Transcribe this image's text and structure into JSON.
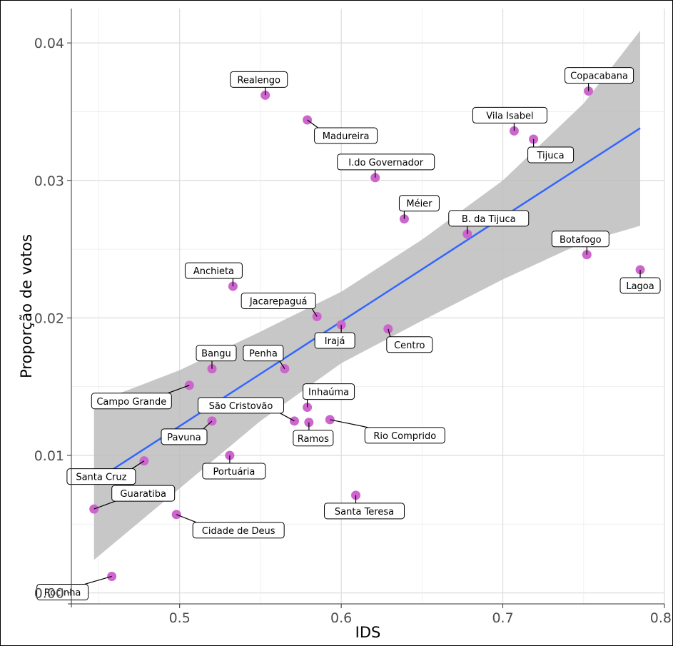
{
  "chart_data": {
    "type": "scatter",
    "title": "",
    "xlabel": "IDS",
    "ylabel": "Proporção de votos",
    "xlim": [
      0.433,
      0.8
    ],
    "ylim": [
      -0.0008,
      0.0425
    ],
    "x_ticks": [
      0.5,
      0.6,
      0.7,
      0.8
    ],
    "x_tick_labels": [
      "0.5",
      "0.6",
      "0.7",
      "0.8"
    ],
    "y_ticks": [
      0.0,
      0.01,
      0.02,
      0.03,
      0.04
    ],
    "y_tick_labels": [
      "0.00",
      "0.01",
      "0.02",
      "0.03",
      "0.04"
    ],
    "grid": true,
    "point_color": "#cc66cc",
    "line_color": "#3366ff",
    "band_color": "#bdbdbd",
    "points": [
      {
        "label": "Rocinha",
        "x": 0.458,
        "y": 0.0012,
        "lx": -2.3,
        "ly": -1
      },
      {
        "label": "Guaratiba",
        "x": 0.447,
        "y": 0.0061,
        "lx": 2.3,
        "ly": 0.5
      },
      {
        "label": "Santa Cruz",
        "x": 0.478,
        "y": 0.0096,
        "lx": -2.0,
        "ly": -1
      },
      {
        "label": "Cidade de Deus",
        "x": 0.498,
        "y": 0.0057,
        "lx": 2.9,
        "ly": -1
      },
      {
        "label": "Campo Grande",
        "x": 0.506,
        "y": 0.0151,
        "lx": -2.7,
        "ly": -1
      },
      {
        "label": "Pavuna",
        "x": 0.52,
        "y": 0.0125,
        "lx": -1.3,
        "ly": -1
      },
      {
        "label": "Bangu",
        "x": 0.52,
        "y": 0.0163,
        "lx": 0.2,
        "ly": 1
      },
      {
        "label": "Portuária",
        "x": 0.531,
        "y": 0.01,
        "lx": 0.2,
        "ly": -1
      },
      {
        "label": "Anchieta",
        "x": 0.533,
        "y": 0.0223,
        "lx": -0.9,
        "ly": 1
      },
      {
        "label": "Realengo",
        "x": 0.553,
        "y": 0.0362,
        "lx": -0.3,
        "ly": 1
      },
      {
        "label": "Penha",
        "x": 0.565,
        "y": 0.0163,
        "lx": -1.0,
        "ly": 1
      },
      {
        "label": "São Cristovão",
        "x": 0.571,
        "y": 0.0125,
        "lx": -2.5,
        "ly": 1
      },
      {
        "label": "Ramos",
        "x": 0.58,
        "y": 0.0124,
        "lx": 0.2,
        "ly": -1
      },
      {
        "label": "Inhaúma",
        "x": 0.579,
        "y": 0.0135,
        "lx": 1.0,
        "ly": 1
      },
      {
        "label": "Madureira",
        "x": 0.579,
        "y": 0.0344,
        "lx": 1.8,
        "ly": -1
      },
      {
        "label": "Jacarepaguá",
        "x": 0.585,
        "y": 0.0201,
        "lx": -1.8,
        "ly": 1
      },
      {
        "label": "Rio Comprido",
        "x": 0.593,
        "y": 0.0126,
        "lx": 3.5,
        "ly": -1
      },
      {
        "label": "Irajá",
        "x": 0.6,
        "y": 0.0195,
        "lx": -0.3,
        "ly": -1
      },
      {
        "label": "Santa Teresa",
        "x": 0.609,
        "y": 0.0071,
        "lx": 0.4,
        "ly": -1
      },
      {
        "label": "I.do Governador",
        "x": 0.621,
        "y": 0.0302,
        "lx": 0.5,
        "ly": 1
      },
      {
        "label": "Centro",
        "x": 0.629,
        "y": 0.0192,
        "lx": 1.0,
        "ly": -1
      },
      {
        "label": "Méier",
        "x": 0.639,
        "y": 0.0272,
        "lx": 0.7,
        "ly": 1
      },
      {
        "label": "B. da Tijuca",
        "x": 0.678,
        "y": 0.0261,
        "lx": 1.0,
        "ly": 1
      },
      {
        "label": "Vila Isabel",
        "x": 0.707,
        "y": 0.0336,
        "lx": -0.2,
        "ly": 1
      },
      {
        "label": "Tijuca",
        "x": 0.719,
        "y": 0.033,
        "lx": 0.8,
        "ly": -1
      },
      {
        "label": "Botafogo",
        "x": 0.752,
        "y": 0.0246,
        "lx": -0.3,
        "ly": 1
      },
      {
        "label": "Copacabana",
        "x": 0.753,
        "y": 0.0365,
        "lx": 0.5,
        "ly": 1
      },
      {
        "label": "Lagoa",
        "x": 0.785,
        "y": 0.0235,
        "lx": 0.0,
        "ly": -1
      }
    ],
    "trend_line": {
      "x": [
        0.447,
        0.785
      ],
      "y": [
        0.0081,
        0.0338
      ]
    },
    "confidence_band": {
      "x": [
        0.447,
        0.5,
        0.55,
        0.6,
        0.65,
        0.7,
        0.75,
        0.785
      ],
      "upper": [
        0.0138,
        0.0162,
        0.019,
        0.0219,
        0.0257,
        0.03,
        0.0356,
        0.0409
      ],
      "lower": [
        0.0024,
        0.0076,
        0.0125,
        0.0167,
        0.0198,
        0.0228,
        0.0255,
        0.0267
      ]
    }
  }
}
